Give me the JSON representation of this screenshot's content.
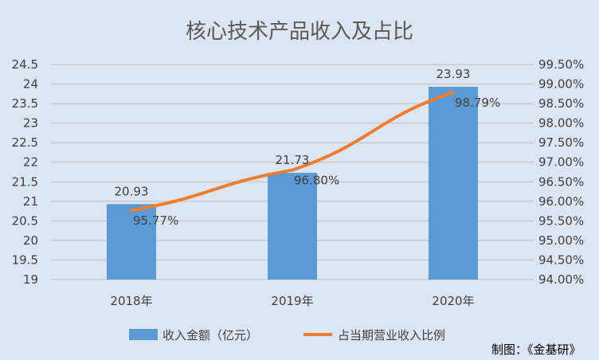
{
  "chart_data": {
    "type": "bar",
    "title": "核心技术产品收入及占比",
    "categories": [
      "2018年",
      "2019年",
      "2020年"
    ],
    "series": [
      {
        "name": "收入金额（亿元）",
        "type": "bar",
        "axis": "left",
        "values": [
          20.93,
          21.73,
          23.93
        ],
        "labels": [
          "20.93",
          "21.73",
          "23.93"
        ],
        "color": "#5b9bd5"
      },
      {
        "name": "占当期营业收入比例",
        "type": "line",
        "axis": "right",
        "values": [
          95.77,
          96.8,
          98.79
        ],
        "labels": [
          "95.77%",
          "96.80%",
          "98.79%"
        ],
        "color": "#ed7d31"
      }
    ],
    "y_left": {
      "min": 19,
      "max": 24.5,
      "ticks": [
        "19",
        "19.5",
        "20",
        "20.5",
        "21",
        "21.5",
        "22",
        "22.5",
        "23",
        "23.5",
        "24",
        "24.5"
      ]
    },
    "y_right": {
      "min": 94.0,
      "max": 99.5,
      "ticks": [
        "94.00%",
        "94.50%",
        "95.00%",
        "95.50%",
        "96.00%",
        "96.50%",
        "97.00%",
        "97.50%",
        "98.00%",
        "98.50%",
        "99.00%",
        "99.50%"
      ]
    },
    "grid": true,
    "legend_position": "bottom",
    "credit": "制图：《金基研》"
  }
}
